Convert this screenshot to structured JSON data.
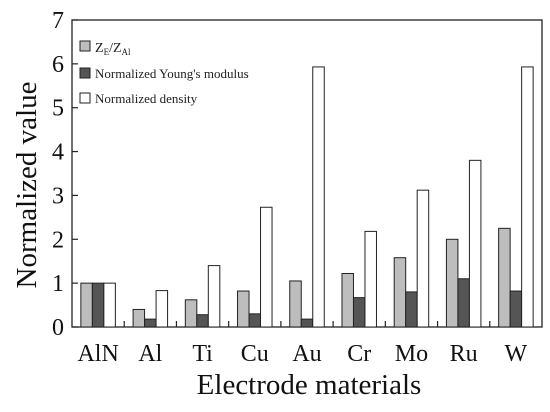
{
  "chart_data": {
    "type": "bar",
    "xlabel": "Electrode materials",
    "ylabel": "Normalized value",
    "ylim": [
      0,
      7
    ],
    "yticks": [
      0,
      1,
      2,
      3,
      4,
      5,
      6,
      7
    ],
    "categories": [
      "AlN",
      "Al",
      "Ti",
      "Cu",
      "Au",
      "Cr",
      "Mo",
      "Ru",
      "W"
    ],
    "series": [
      {
        "name": "Z_E/Z_Al",
        "color": "#bdbdbd",
        "values": [
          1.0,
          0.4,
          0.62,
          0.82,
          1.05,
          1.22,
          1.58,
          2.0,
          2.25
        ]
      },
      {
        "name": "Normalized Young's modulus",
        "color": "#555555",
        "values": [
          1.0,
          0.18,
          0.28,
          0.3,
          0.18,
          0.67,
          0.8,
          1.1,
          0.82
        ]
      },
      {
        "name": "Normalized density",
        "color": "#ffffff",
        "values": [
          1.0,
          0.83,
          1.4,
          2.73,
          5.93,
          2.18,
          3.12,
          3.8,
          5.93
        ]
      }
    ],
    "legend": {
      "position": "top-left",
      "labels": [
        {
          "main": "Z",
          "sub": "E",
          "mid": "/Z",
          "sub2": "Al"
        },
        {
          "text": "Normalized Young's modulus"
        },
        {
          "text": "Normalized density"
        }
      ]
    },
    "grid": false
  }
}
